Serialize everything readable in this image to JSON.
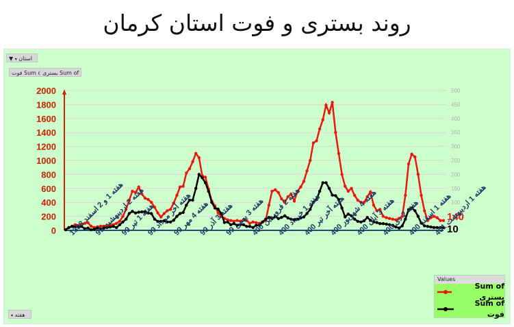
{
  "title": "روند بستری و فوت استان کرمان",
  "filters": {
    "province_filter_label": "استان",
    "value_fields": [
      "Sum of فوت",
      "Sum of بستری"
    ],
    "axis_field_label": "هفته"
  },
  "legend": {
    "header": "Values",
    "items": [
      {
        "label": "Sum of بستری",
        "color": "#e8190c"
      },
      {
        "label": "Sum of فوت",
        "color": "#000000"
      }
    ]
  },
  "end_labels": {
    "red": "140",
    "black": "10"
  },
  "colors": {
    "background": "#ccffcc",
    "red_series": "#e8190c",
    "black_series": "#000000",
    "left_axis": "#cc2200",
    "right_axis": "#b0b0b0",
    "x_labels": "#1f3864",
    "baseline": "#1f4e79"
  },
  "chart_data": {
    "type": "line",
    "title": "روند بستری و فوت استان کرمان",
    "xlabel": "هفته",
    "ylabel_left": "Sum of بستری",
    "ylabel_right": "Sum of فوت",
    "ylim_left": [
      0,
      2000
    ],
    "ylim_right": [
      0,
      500
    ],
    "left_ticks": [
      0,
      200,
      400,
      600,
      800,
      1000,
      1200,
      1400,
      1600,
      1800,
      2000
    ],
    "right_ticks": [
      100,
      150,
      200,
      250,
      300,
      350,
      400,
      450,
      500
    ],
    "grid": true,
    "legend_position": "bottom-right",
    "x_tick_labels": [
      "هفته 1 و 2 اسفند 1398",
      "هفته 2 اردیبهشت 99",
      "هفته 1 تیر 99",
      "هفته آخر مرداد 99",
      "هفته 4 مهر 99",
      "هفته 3 آذر 99",
      "هفته 3 بهمن 99",
      "هفته 2 فروردین 400",
      "هفته 1 خرداد 400",
      "هفته آخر تیر 400",
      "هفته 4 شهریور 400",
      "هفته 3 آبان 400",
      "هفته 2 دی 400",
      "هفته 1 اسفند 400",
      "هفته 1 اردیبهشت 401"
    ],
    "series": [
      {
        "name": "Sum of بستری",
        "axis": "left",
        "color": "#e8190c",
        "values": [
          10,
          40,
          60,
          80,
          70,
          80,
          100,
          110,
          60,
          40,
          50,
          60,
          60,
          70,
          80,
          80,
          100,
          130,
          200,
          300,
          430,
          560,
          540,
          620,
          520,
          460,
          440,
          400,
          330,
          250,
          190,
          240,
          280,
          300,
          390,
          500,
          620,
          630,
          820,
          880,
          980,
          1100,
          1040,
          780,
          760,
          590,
          420,
          350,
          250,
          200,
          170,
          150,
          140,
          130,
          140,
          130,
          150,
          140,
          100,
          120,
          110,
          100,
          120,
          140,
          360,
          560,
          580,
          540,
          450,
          400,
          480,
          520,
          420,
          560,
          620,
          700,
          850,
          1000,
          1250,
          1280,
          1450,
          1580,
          1790,
          1680,
          1830,
          1400,
          1100,
          800,
          630,
          560,
          600,
          500,
          430,
          400,
          400,
          480,
          550,
          360,
          280,
          300,
          200,
          180,
          170,
          160,
          150,
          170,
          200,
          500,
          950,
          1090,
          1050,
          800,
          500,
          280,
          140,
          180,
          200,
          180,
          140,
          140
        ]
      },
      {
        "name": "Sum of فوت",
        "axis": "right",
        "color": "#000000",
        "values": [
          2,
          10,
          14,
          12,
          12,
          14,
          6,
          8,
          2,
          4,
          8,
          6,
          8,
          10,
          12,
          14,
          10,
          20,
          30,
          40,
          60,
          68,
          62,
          65,
          66,
          67,
          62,
          60,
          40,
          32,
          32,
          34,
          30,
          30,
          36,
          50,
          60,
          64,
          90,
          108,
          108,
          150,
          200,
          188,
          170,
          140,
          100,
          80,
          76,
          60,
          28,
          30,
          20,
          24,
          18,
          20,
          20,
          14,
          14,
          10,
          18,
          18,
          30,
          40,
          46,
          42,
          50,
          42,
          46,
          52,
          44,
          40,
          38,
          40,
          44,
          48,
          60,
          75,
          100,
          110,
          140,
          170,
          170,
          150,
          126,
          124,
          110,
          80,
          48,
          58,
          52,
          40,
          32,
          30,
          34,
          46,
          36,
          30,
          28,
          24,
          24,
          22,
          20,
          18,
          12,
          8,
          16,
          40,
          74,
          80,
          70,
          50,
          26,
          16,
          14,
          12,
          10,
          10,
          10,
          10
        ]
      }
    ]
  }
}
